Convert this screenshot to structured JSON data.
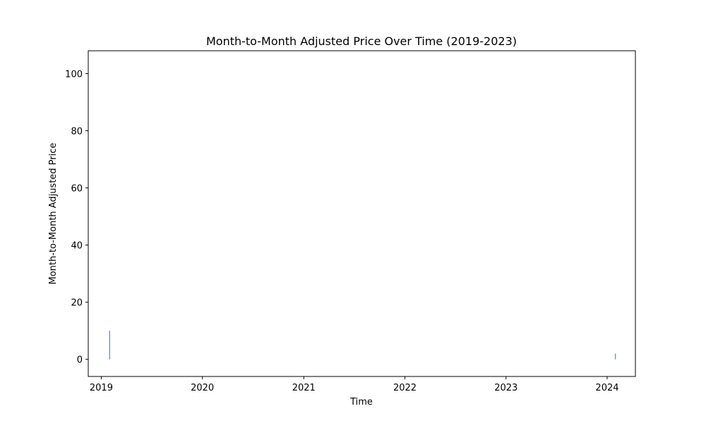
{
  "chart_data": {
    "type": "bar",
    "title": "Month-to-Month Adjusted Price Over Time (2019-2023)",
    "xlabel": "Time",
    "ylabel": "Month-to-Month Adjusted Price",
    "x_tick_labels": [
      "2019",
      "2020",
      "2021",
      "2022",
      "2023",
      "2024"
    ],
    "y_tick_labels": [
      "0",
      "20",
      "40",
      "60",
      "80",
      "100"
    ],
    "x_range": [
      "2018-11-15",
      "2024-04-12"
    ],
    "ylim": [
      -6,
      108
    ],
    "grid": false,
    "legend": "none",
    "series_color": "#1f77b4",
    "points": [
      {
        "x": "2019-01-31",
        "y": 10
      },
      {
        "x": "2024-01-31",
        "y": 2
      }
    ]
  }
}
